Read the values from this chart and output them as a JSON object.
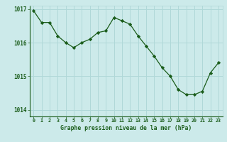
{
  "x": [
    0,
    1,
    2,
    3,
    4,
    5,
    6,
    7,
    8,
    9,
    10,
    11,
    12,
    13,
    14,
    15,
    16,
    17,
    18,
    19,
    20,
    21,
    22,
    23
  ],
  "y": [
    1016.95,
    1016.6,
    1016.6,
    1016.2,
    1016.0,
    1015.85,
    1016.0,
    1016.1,
    1016.3,
    1016.35,
    1016.75,
    1016.65,
    1016.55,
    1016.2,
    1015.9,
    1015.6,
    1015.25,
    1015.0,
    1014.6,
    1014.45,
    1014.45,
    1014.55,
    1015.1,
    1015.4
  ],
  "line_color": "#1a5c1a",
  "marker": "D",
  "marker_size": 2.2,
  "bg_color": "#cceaea",
  "grid_color": "#b0d8d8",
  "xlabel": "Graphe pression niveau de la mer (hPa)",
  "xlabel_color": "#1a5c1a",
  "tick_color": "#1a5c1a",
  "ylim": [
    1013.8,
    1017.1
  ],
  "xlim": [
    -0.5,
    23.5
  ],
  "yticks": [
    1014,
    1015,
    1016,
    1017
  ],
  "xticks": [
    0,
    1,
    2,
    3,
    4,
    5,
    6,
    7,
    8,
    9,
    10,
    11,
    12,
    13,
    14,
    15,
    16,
    17,
    18,
    19,
    20,
    21,
    22,
    23
  ],
  "xtick_labels": [
    "0",
    "1",
    "2",
    "3",
    "4",
    "5",
    "6",
    "7",
    "8",
    "9",
    "10",
    "11",
    "12",
    "13",
    "14",
    "15",
    "16",
    "17",
    "18",
    "19",
    "20",
    "21",
    "22",
    "23"
  ]
}
